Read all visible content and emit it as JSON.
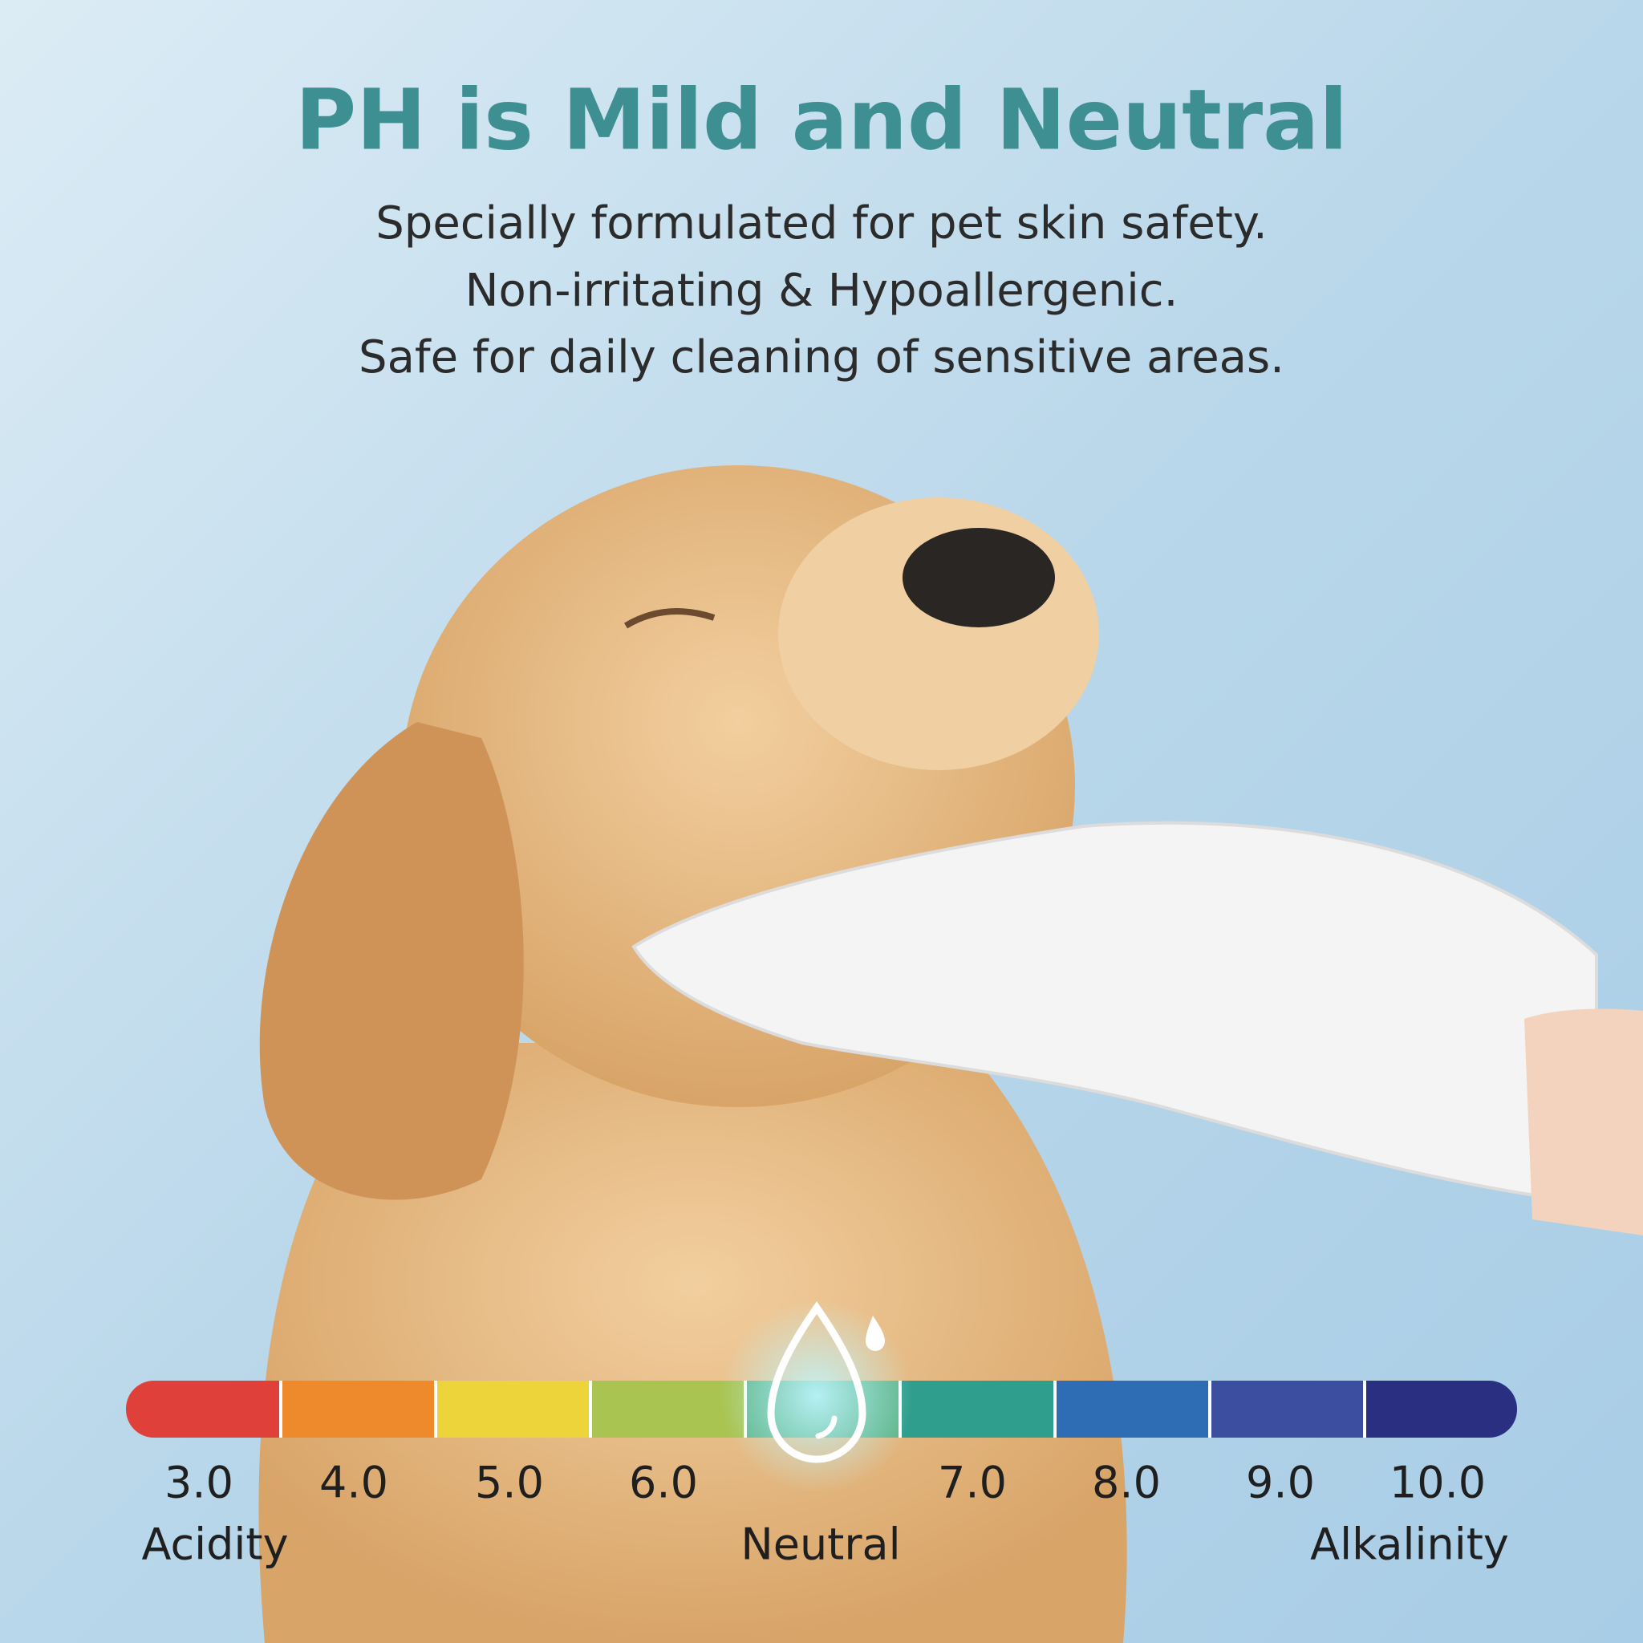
{
  "header": {
    "title": "PH is Mild and Neutral",
    "lines": [
      "Specially formulated for pet skin safety.",
      "Non-irritating & Hypoallergenic.",
      "Safe for daily cleaning of sensitive areas."
    ]
  },
  "ph_scale": {
    "values": [
      "3.0",
      "4.0",
      "5.0",
      "6.0",
      "7.0",
      "8.0",
      "9.0",
      "10.0"
    ],
    "captions": [
      "Acidity",
      "Neutral",
      "Alkalinity"
    ]
  }
}
